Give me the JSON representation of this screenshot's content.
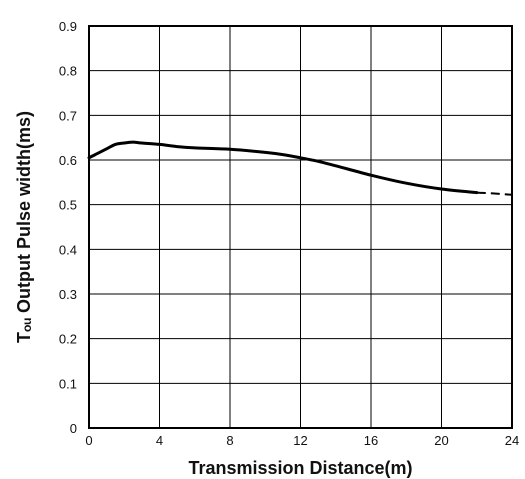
{
  "chart_data": {
    "type": "line",
    "xlabel": "Transmission Distance(m)",
    "ylabel": "Tₒᵤ Output Pulse width(ms)",
    "xlim": [
      0,
      24
    ],
    "ylim": [
      0,
      0.9
    ],
    "x_ticks": [
      "0",
      "4",
      "8",
      "12",
      "16",
      "20",
      "24"
    ],
    "y_ticks": [
      "0",
      "0.1",
      "0.2",
      "0.3",
      "0.4",
      "0.5",
      "0.6",
      "0.7",
      "0.8",
      "0.9"
    ],
    "grid": true,
    "series": [
      {
        "style": "solid",
        "x": [
          0,
          0.5,
          1,
          1.5,
          2,
          2.5,
          3,
          4,
          5,
          6,
          8,
          10,
          11,
          12,
          13,
          14,
          16,
          18,
          20,
          22
        ],
        "y": [
          0.605,
          0.615,
          0.625,
          0.635,
          0.638,
          0.64,
          0.638,
          0.635,
          0.63,
          0.627,
          0.624,
          0.617,
          0.612,
          0.605,
          0.597,
          0.587,
          0.566,
          0.548,
          0.535,
          0.527
        ]
      },
      {
        "style": "dashed",
        "x": [
          22,
          23,
          24
        ],
        "y": [
          0.527,
          0.525,
          0.522
        ]
      }
    ]
  }
}
